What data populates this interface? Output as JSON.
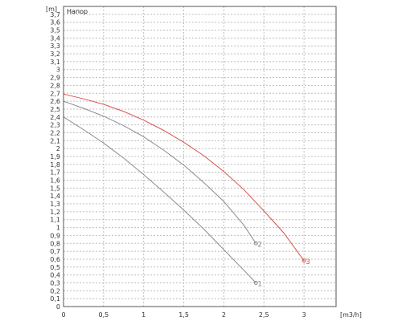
{
  "chart_data": {
    "type": "line",
    "title": "Напор",
    "ylabel": "[m]",
    "xlabel": "[m3/h]",
    "xlim": [
      0,
      3.4
    ],
    "ylim": [
      0,
      3.8
    ],
    "x_ticks": [
      "0",
      "0,5",
      "1",
      "1,5",
      "2",
      "2,5",
      "3"
    ],
    "y_ticks": [
      "0",
      "0,1",
      "0,2",
      "0,3",
      "0,4",
      "0,5",
      "0,6",
      "0,7",
      "0,8",
      "0,9",
      "1",
      "1,1",
      "1,2",
      "1,3",
      "1,4",
      "1,5",
      "1,6",
      "1,7",
      "1,8",
      "1,9",
      "2",
      "2,1",
      "2,2",
      "2,3",
      "2,4",
      "2,5",
      "2,6",
      "2,7",
      "2,8",
      "2,9",
      "3",
      "3,1",
      "3,2",
      "3,3",
      "3,4",
      "3,5",
      "3,6",
      "3,7"
    ],
    "grid": true,
    "series": [
      {
        "name": "1",
        "color": "#8c8c8c",
        "x": [
          0,
          0.25,
          0.5,
          0.75,
          1.0,
          1.25,
          1.5,
          1.75,
          2.0,
          2.25,
          2.4
        ],
        "y": [
          2.4,
          2.24,
          2.07,
          1.88,
          1.67,
          1.45,
          1.22,
          0.98,
          0.72,
          0.46,
          0.3
        ]
      },
      {
        "name": "2",
        "color": "#8c8c8c",
        "x": [
          0,
          0.25,
          0.5,
          0.75,
          1.0,
          1.25,
          1.5,
          1.75,
          2.0,
          2.25,
          2.4
        ],
        "y": [
          2.6,
          2.51,
          2.41,
          2.29,
          2.15,
          1.98,
          1.79,
          1.57,
          1.33,
          1.03,
          0.8
        ]
      },
      {
        "name": "3",
        "color": "#d9534f",
        "x": [
          0,
          0.25,
          0.5,
          0.75,
          1.0,
          1.25,
          1.5,
          1.75,
          2.0,
          2.25,
          2.5,
          2.75,
          3.0
        ],
        "y": [
          2.69,
          2.63,
          2.56,
          2.47,
          2.36,
          2.23,
          2.08,
          1.91,
          1.71,
          1.48,
          1.21,
          0.93,
          0.58
        ]
      }
    ]
  }
}
